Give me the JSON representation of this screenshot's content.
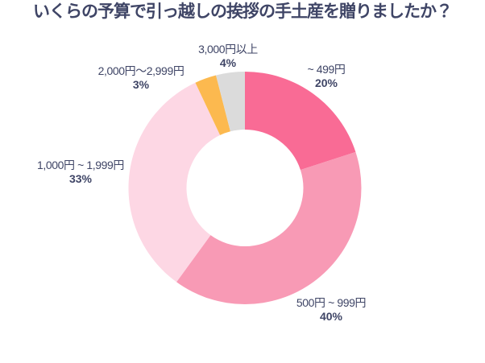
{
  "page": {
    "background": "#ffffff"
  },
  "header": {
    "title": "いくらの予算で引っ越しの挨拶の手土産を贈りましたか？",
    "color": "#3F4566"
  },
  "chart_data": {
    "type": "pie",
    "variant": "donut",
    "title": "いくらの予算で引っ越しの挨拶の手土産を贈りましたか？",
    "start_angle_deg": 0,
    "direction": "clockwise",
    "legend_position": "labels-outside",
    "label_color": "#3F4566",
    "segments": [
      {
        "label": "~ 499円",
        "value": 20,
        "pct_label": "20%",
        "color": "#F96B95"
      },
      {
        "label": "500円 ~ 999円",
        "value": 40,
        "pct_label": "40%",
        "color": "#F89AB5"
      },
      {
        "label": "1,000円 ~ 1,999円",
        "value": 33,
        "pct_label": "33%",
        "color": "#FDD7E4"
      },
      {
        "label": "2,000円～2,999円",
        "value": 3,
        "pct_label": "3%",
        "color": "#FCB94F"
      },
      {
        "label": "3,000円以上",
        "value": 4,
        "pct_label": "4%",
        "color": "#DBDBDB"
      }
    ]
  }
}
